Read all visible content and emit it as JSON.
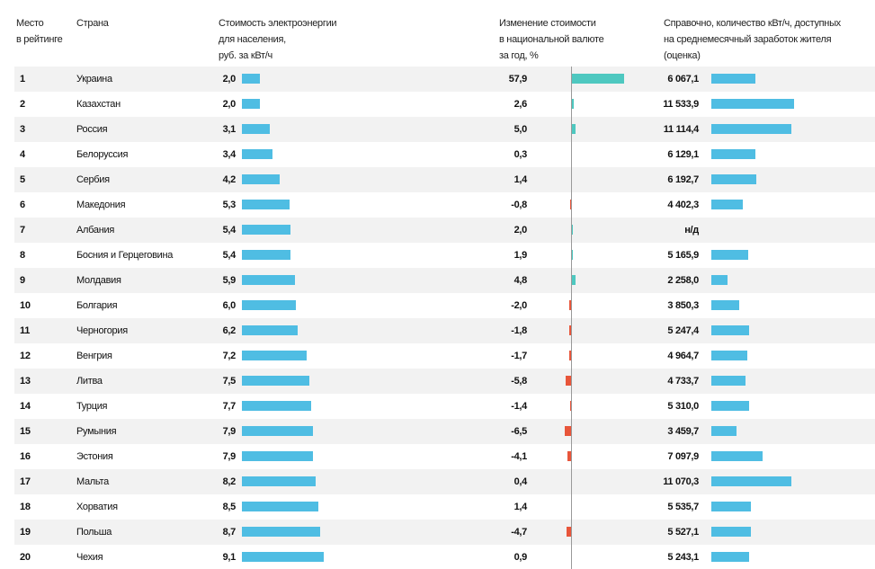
{
  "headers": {
    "rank": [
      "Место",
      "в рейтинге"
    ],
    "country": [
      "Страна"
    ],
    "price": [
      "Стоимость электроэнергии",
      "для населения,",
      "руб. за кВт/ч"
    ],
    "change": [
      "Изменение стоимости",
      "в национальной валюте",
      "за год, %"
    ],
    "kwh": [
      "Справочно, количество кВт/ч, доступных",
      "на среднемесячный заработок жителя",
      "(оценка)"
    ]
  },
  "colors": {
    "price_bar": "#4fbde3",
    "change_positive": "#4ec8c0",
    "change_negative": "#e8553a",
    "kwh_bar": "#4fbde3",
    "stripe": "#f2f2f2"
  },
  "chart_data": {
    "type": "table",
    "columns": [
      "Место в рейтинге",
      "Страна",
      "Стоимость электроэнергии для населения, руб. за кВт/ч",
      "Изменение стоимости в национальной валюте за год, %",
      "Справочно, количество кВт/ч, доступных на среднемесячный заработок жителя (оценка)"
    ],
    "rows": [
      {
        "rank": "1",
        "country": "Украина",
        "price": "2,0",
        "price_value": 2.0,
        "change": "57,9",
        "change_value": 57.9,
        "kwh": "6 067,1",
        "kwh_value": 6067.1
      },
      {
        "rank": "2",
        "country": "Казахстан",
        "price": "2,0",
        "price_value": 2.0,
        "change": "2,6",
        "change_value": 2.6,
        "kwh": "11 533,9",
        "kwh_value": 11533.9
      },
      {
        "rank": "3",
        "country": "Россия",
        "price": "3,1",
        "price_value": 3.1,
        "change": "5,0",
        "change_value": 5.0,
        "kwh": "11 114,4",
        "kwh_value": 11114.4
      },
      {
        "rank": "4",
        "country": "Белоруссия",
        "price": "3,4",
        "price_value": 3.4,
        "change": "0,3",
        "change_value": 0.3,
        "kwh": "6 129,1",
        "kwh_value": 6129.1
      },
      {
        "rank": "5",
        "country": "Сербия",
        "price": "4,2",
        "price_value": 4.2,
        "change": "1,4",
        "change_value": 1.4,
        "kwh": "6 192,7",
        "kwh_value": 6192.7
      },
      {
        "rank": "6",
        "country": "Македония",
        "price": "5,3",
        "price_value": 5.3,
        "change": "-0,8",
        "change_value": -0.8,
        "kwh": "4 402,3",
        "kwh_value": 4402.3
      },
      {
        "rank": "7",
        "country": "Албания",
        "price": "5,4",
        "price_value": 5.4,
        "change": "2,0",
        "change_value": 2.0,
        "kwh": "н/д",
        "kwh_value": null
      },
      {
        "rank": "8",
        "country": "Босния и Герцеговина",
        "price": "5,4",
        "price_value": 5.4,
        "change": "1,9",
        "change_value": 1.9,
        "kwh": "5 165,9",
        "kwh_value": 5165.9
      },
      {
        "rank": "9",
        "country": "Молдавия",
        "price": "5,9",
        "price_value": 5.9,
        "change": "4,8",
        "change_value": 4.8,
        "kwh": "2 258,0",
        "kwh_value": 2258.0
      },
      {
        "rank": "10",
        "country": "Болгария",
        "price": "6,0",
        "price_value": 6.0,
        "change": "-2,0",
        "change_value": -2.0,
        "kwh": "3 850,3",
        "kwh_value": 3850.3
      },
      {
        "rank": "11",
        "country": "Черногория",
        "price": "6,2",
        "price_value": 6.2,
        "change": "-1,8",
        "change_value": -1.8,
        "kwh": "5 247,4",
        "kwh_value": 5247.4
      },
      {
        "rank": "12",
        "country": "Венгрия",
        "price": "7,2",
        "price_value": 7.2,
        "change": "-1,7",
        "change_value": -1.7,
        "kwh": "4 964,7",
        "kwh_value": 4964.7
      },
      {
        "rank": "13",
        "country": "Литва",
        "price": "7,5",
        "price_value": 7.5,
        "change": "-5,8",
        "change_value": -5.8,
        "kwh": "4 733,7",
        "kwh_value": 4733.7
      },
      {
        "rank": "14",
        "country": "Турция",
        "price": "7,7",
        "price_value": 7.7,
        "change": "-1,4",
        "change_value": -1.4,
        "kwh": "5 310,0",
        "kwh_value": 5310.0
      },
      {
        "rank": "15",
        "country": "Румыния",
        "price": "7,9",
        "price_value": 7.9,
        "change": "-6,5",
        "change_value": -6.5,
        "kwh": "3 459,7",
        "kwh_value": 3459.7
      },
      {
        "rank": "16",
        "country": "Эстония",
        "price": "7,9",
        "price_value": 7.9,
        "change": "-4,1",
        "change_value": -4.1,
        "kwh": "7 097,9",
        "kwh_value": 7097.9
      },
      {
        "rank": "17",
        "country": "Мальта",
        "price": "8,2",
        "price_value": 8.2,
        "change": "0,4",
        "change_value": 0.4,
        "kwh": "11 070,3",
        "kwh_value": 11070.3
      },
      {
        "rank": "18",
        "country": "Хорватия",
        "price": "8,5",
        "price_value": 8.5,
        "change": "1,4",
        "change_value": 1.4,
        "kwh": "5 535,7",
        "kwh_value": 5535.7
      },
      {
        "rank": "19",
        "country": "Польша",
        "price": "8,7",
        "price_value": 8.7,
        "change": "-4,7",
        "change_value": -4.7,
        "kwh": "5 527,1",
        "kwh_value": 5527.1
      },
      {
        "rank": "20",
        "country": "Чехия",
        "price": "9,1",
        "price_value": 9.1,
        "change": "0,9",
        "change_value": 0.9,
        "kwh": "5 243,1",
        "kwh_value": 5243.1
      }
    ]
  }
}
